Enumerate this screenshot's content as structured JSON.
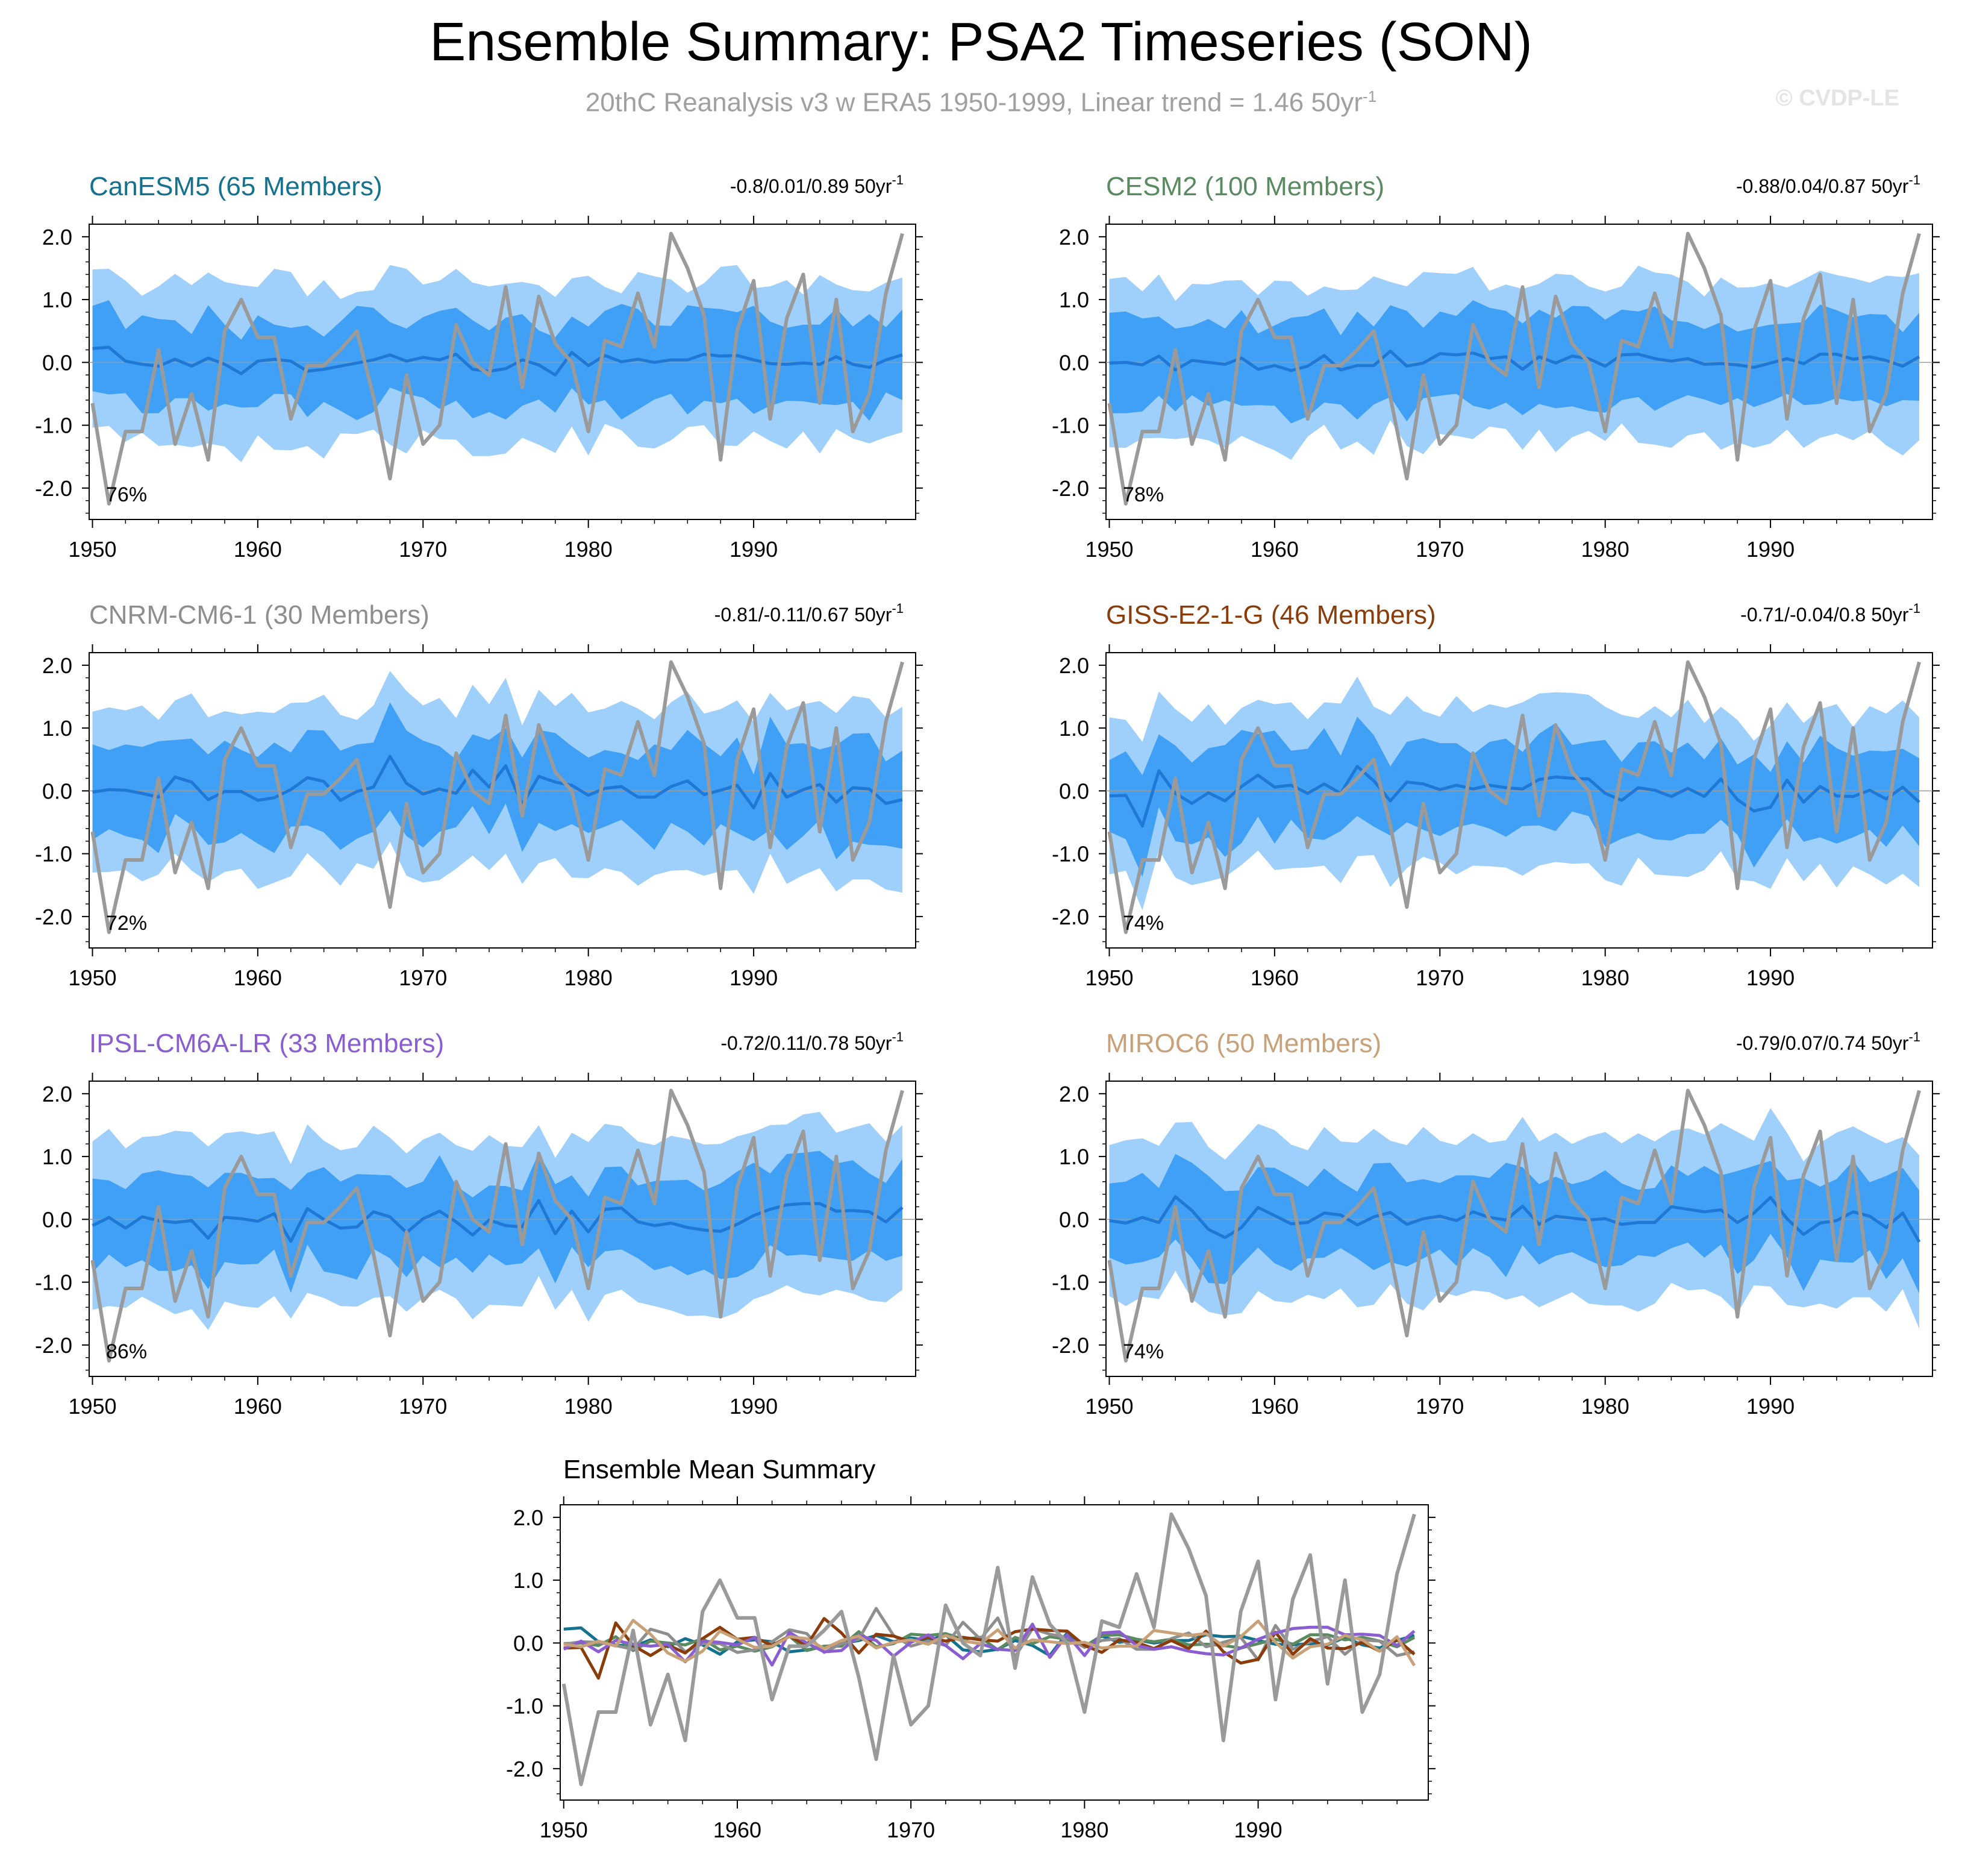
{
  "header": {
    "title": "Ensemble Summary: PSA2 Timeseries (SON)",
    "subtitle_text": "20thC Reanalysis v3 w ERA5 1950-1999, Linear trend = 1.46 50yr",
    "subtitle_exp": "-1",
    "watermark": "© CVDP-LE"
  },
  "colors": {
    "spread_outer": "#9ed0fb",
    "spread_inner": "#3fa0f5",
    "ens_mean": "#1f78d6",
    "obs": "#9a9a9a",
    "zero_line": "#9a9a9a"
  },
  "chart_data": {
    "type": "line",
    "x_years": [
      1950,
      1951,
      1952,
      1953,
      1954,
      1955,
      1956,
      1957,
      1958,
      1959,
      1960,
      1961,
      1962,
      1963,
      1964,
      1965,
      1966,
      1967,
      1968,
      1969,
      1970,
      1971,
      1972,
      1973,
      1974,
      1975,
      1976,
      1977,
      1978,
      1979,
      1980,
      1981,
      1982,
      1983,
      1984,
      1985,
      1986,
      1987,
      1988,
      1989,
      1990,
      1991,
      1992,
      1993,
      1994,
      1995,
      1996,
      1997,
      1998,
      1999
    ],
    "xlim": [
      1949.8,
      1999.8
    ],
    "ylim": [
      -2.5,
      2.2
    ],
    "y_ticks": [
      "2.0",
      "1.0",
      "0.0",
      "-1.0",
      "-2.0"
    ],
    "x_ticks": [
      "1950",
      "1960",
      "1970",
      "1980",
      "1990"
    ],
    "observed": {
      "name": "20thC Reanalysis v3 w ERA5",
      "values": [
        -0.65,
        -2.25,
        -1.1,
        -1.1,
        0.2,
        -1.3,
        -0.5,
        -1.55,
        0.5,
        1.0,
        0.4,
        0.4,
        -0.9,
        -0.05,
        -0.05,
        0.2,
        0.5,
        -0.55,
        -1.85,
        -0.2,
        -1.3,
        -1.0,
        0.6,
        0.0,
        -0.2,
        1.2,
        -0.4,
        1.05,
        0.3,
        0.0,
        -1.1,
        0.35,
        0.25,
        1.1,
        0.25,
        2.05,
        1.5,
        0.75,
        -1.55,
        0.5,
        1.3,
        -0.9,
        0.7,
        1.4,
        -0.65,
        1.0,
        -1.1,
        -0.5,
        1.1,
        2.05
      ]
    },
    "panels": [
      {
        "label": "CanESM5 (65 Members)",
        "color": "#15728f",
        "stats": "-0.8/0.01/0.89 50yr",
        "stats_exp": "-1",
        "percent": "76%",
        "ens_mean": [
          0.22,
          0.24,
          0.02,
          -0.03,
          -0.06,
          0.05,
          -0.06,
          0.07,
          -0.03,
          -0.18,
          0.02,
          0.05,
          0.02,
          -0.14,
          -0.11,
          -0.06,
          -0.01,
          0.04,
          0.12,
          0.02,
          0.08,
          0.04,
          0.13,
          -0.11,
          -0.14,
          -0.1,
          0.04,
          -0.04,
          -0.2,
          0.16,
          -0.05,
          0.11,
          0.01,
          0.05,
          0.0,
          0.04,
          0.04,
          0.13,
          0.1,
          0.11,
          0.04,
          -0.02,
          -0.03,
          -0.01,
          -0.03,
          0.09,
          -0.03,
          -0.08,
          0.04,
          0.12
        ],
        "inner_amp": [
          0.68,
          0.75,
          0.51,
          0.78,
          0.75,
          0.62,
          0.51,
          0.84,
          0.63,
          0.54,
          0.73,
          0.55,
          0.53,
          0.73,
          0.52,
          0.71,
          0.91,
          0.83,
          0.52,
          0.52,
          0.64,
          0.78,
          0.74,
          0.78,
          0.65,
          0.81,
          0.73,
          0.55,
          0.6,
          0.57,
          0.62,
          0.71,
          0.92,
          0.8,
          0.59,
          0.54,
          0.87,
          0.74,
          0.75,
          0.69,
          0.86,
          0.67,
          0.58,
          0.61,
          0.63,
          0.77,
          0.6,
          0.85,
          0.52,
          0.72
        ],
        "outer_amp": [
          1.26,
          1.25,
          1.28,
          1.09,
          1.27,
          1.36,
          1.29,
          1.36,
          1.31,
          1.41,
          1.18,
          1.44,
          1.42,
          1.19,
          1.42,
          1.07,
          1.13,
          1.11,
          1.43,
          1.47,
          1.16,
          1.26,
          1.36,
          1.38,
          1.35,
          1.35,
          1.24,
          1.27,
          1.24,
          1.18,
          1.43,
          1.09,
          1.09,
          1.39,
          1.37,
          1.28,
          1.07,
          1.13,
          1.42,
          1.44,
          1.14,
          1.23,
          1.34,
          1.09,
          1.42,
          1.15,
          1.18,
          1.21,
          1.23,
          1.23
        ]
      },
      {
        "label": "CESM2 (100 Members)",
        "color": "#5a8a60",
        "stats": "-0.88/0.04/0.87 50yr",
        "stats_exp": "-1",
        "percent": "78%",
        "ens_mean": [
          -0.01,
          0.0,
          -0.04,
          0.1,
          -0.12,
          0.03,
          0.0,
          -0.03,
          0.07,
          -0.11,
          -0.05,
          -0.13,
          -0.06,
          0.11,
          -0.12,
          -0.05,
          -0.05,
          0.18,
          -0.06,
          -0.01,
          0.14,
          0.12,
          0.15,
          0.06,
          0.09,
          -0.11,
          0.09,
          -0.01,
          0.1,
          0.06,
          -0.06,
          0.12,
          0.13,
          0.06,
          0.02,
          0.06,
          -0.03,
          -0.02,
          -0.04,
          -0.08,
          -0.01,
          0.06,
          -0.02,
          0.13,
          0.13,
          0.05,
          0.09,
          0.03,
          -0.06,
          0.09
        ],
        "inner_amp": [
          0.8,
          0.81,
          0.74,
          0.63,
          0.66,
          0.55,
          0.69,
          0.57,
          0.76,
          0.57,
          0.64,
          0.84,
          0.8,
          0.75,
          0.55,
          0.86,
          0.62,
          0.73,
          0.88,
          0.56,
          0.67,
          0.62,
          0.84,
          0.81,
          0.73,
          0.73,
          0.75,
          0.72,
          0.8,
          0.83,
          0.74,
          0.72,
          0.68,
          0.83,
          0.65,
          0.58,
          0.56,
          0.66,
          0.53,
          0.63,
          0.61,
          0.56,
          0.66,
          0.79,
          0.7,
          0.67,
          0.68,
          0.73,
          0.54,
          0.7
        ],
        "outer_amp": [
          1.34,
          1.36,
          1.17,
          1.3,
          1.1,
          1.22,
          1.24,
          1.33,
          1.24,
          1.18,
          1.35,
          1.42,
          1.12,
          1.1,
          1.27,
          1.21,
          1.42,
          1.1,
          1.27,
          1.45,
          1.28,
          1.29,
          1.37,
          1.08,
          1.15,
          1.28,
          1.16,
          1.42,
          1.29,
          1.15,
          1.19,
          1.09,
          1.41,
          1.37,
          1.38,
          1.22,
          1.08,
          1.37,
          1.23,
          1.28,
          1.28,
          1.13,
          1.34,
          1.33,
          1.26,
          1.29,
          1.18,
          1.35,
          1.42,
          1.33
        ]
      },
      {
        "label": "CNRM-CM6-1 (30 Members)",
        "color": "#8e8e8e",
        "stats": "-0.81/-0.11/0.67 50yr",
        "stats_exp": "-1",
        "percent": "72%",
        "ens_mean": [
          -0.02,
          0.02,
          0.01,
          -0.04,
          -0.1,
          0.22,
          0.14,
          -0.14,
          -0.01,
          -0.01,
          -0.15,
          -0.11,
          0.02,
          0.21,
          0.15,
          -0.15,
          -0.01,
          0.06,
          0.55,
          0.12,
          -0.05,
          0.03,
          -0.04,
          0.33,
          0.06,
          0.4,
          -0.22,
          0.23,
          0.14,
          0.09,
          -0.07,
          0.04,
          0.07,
          -0.1,
          -0.1,
          0.07,
          0.16,
          -0.06,
          0.01,
          0.09,
          -0.27,
          0.28,
          -0.1,
          0.02,
          0.1,
          -0.18,
          0.05,
          0.03,
          -0.2,
          -0.14
        ],
        "inner_amp": [
          0.76,
          0.63,
          0.73,
          0.74,
          0.89,
          0.59,
          0.69,
          0.72,
          0.81,
          0.66,
          0.69,
          0.88,
          0.59,
          0.76,
          0.81,
          0.79,
          0.75,
          0.71,
          0.86,
          0.84,
          0.85,
          0.68,
          0.54,
          0.57,
          0.75,
          0.6,
          0.75,
          0.74,
          0.78,
          0.62,
          0.6,
          0.61,
          0.53,
          0.59,
          0.84,
          0.58,
          0.81,
          0.81,
          0.54,
          0.76,
          0.53,
          0.9,
          0.84,
          0.74,
          0.56,
          0.91,
          0.86,
          0.89,
          0.67,
          0.78
        ],
        "outer_amp": [
          1.28,
          1.31,
          1.27,
          1.4,
          1.23,
          1.22,
          1.41,
          1.31,
          1.28,
          1.23,
          1.41,
          1.35,
          1.38,
          1.2,
          1.38,
          1.36,
          1.14,
          1.3,
          1.36,
          1.47,
          1.41,
          1.45,
          1.2,
          1.36,
          1.32,
          1.4,
          1.26,
          1.38,
          1.21,
          1.47,
          1.32,
          1.27,
          1.36,
          1.41,
          1.24,
          1.34,
          1.42,
          1.29,
          1.29,
          1.35,
          1.37,
          1.28,
          1.38,
          1.36,
          1.33,
          1.42,
          1.46,
          1.44,
          1.37,
          1.48
        ]
      },
      {
        "label": "GISS-E2-1-G (46 Members)",
        "color": "#8a3d0a",
        "stats": "-0.71/-0.04/0.8 50yr",
        "stats_exp": "-1",
        "percent": "74%",
        "ens_mean": [
          -0.08,
          -0.07,
          -0.56,
          0.32,
          -0.04,
          -0.2,
          -0.03,
          -0.16,
          0.07,
          0.25,
          0.06,
          0.09,
          -0.04,
          0.11,
          -0.04,
          0.39,
          0.16,
          -0.16,
          0.14,
          0.11,
          0.02,
          0.09,
          0.03,
          0.09,
          0.05,
          0.03,
          0.18,
          0.22,
          0.2,
          0.19,
          -0.04,
          -0.15,
          0.05,
          0.01,
          -0.09,
          0.04,
          -0.09,
          0.19,
          -0.14,
          -0.32,
          -0.26,
          0.17,
          -0.18,
          0.07,
          -0.08,
          -0.09,
          0.01,
          -0.13,
          0.06,
          -0.18
        ],
        "inner_amp": [
          0.57,
          0.7,
          0.81,
          0.58,
          0.76,
          0.65,
          0.71,
          0.89,
          0.9,
          0.66,
          0.9,
          0.55,
          0.71,
          0.89,
          0.6,
          0.79,
          0.73,
          0.55,
          0.64,
          0.73,
          0.74,
          0.67,
          0.55,
          0.69,
          0.78,
          0.59,
          0.73,
          0.86,
          0.53,
          0.59,
          0.85,
          0.61,
          0.72,
          0.78,
          0.7,
          0.73,
          0.59,
          0.65,
          0.56,
          0.9,
          0.56,
          0.62,
          0.63,
          0.81,
          0.76,
          0.65,
          0.63,
          0.76,
          0.61,
          0.7
        ],
        "outer_amp": [
          1.25,
          1.2,
          1.34,
          1.26,
          1.34,
          1.3,
          1.41,
          1.21,
          1.25,
          1.2,
          1.32,
          1.32,
          1.18,
          1.3,
          1.43,
          1.43,
          1.18,
          1.37,
          1.37,
          1.16,
          1.16,
          1.42,
          1.22,
          1.29,
          1.27,
          1.38,
          1.37,
          1.35,
          1.36,
          1.34,
          1.38,
          1.36,
          1.11,
          1.34,
          1.26,
          1.41,
          1.17,
          1.15,
          1.27,
          1.12,
          1.3,
          1.24,
          1.26,
          1.23,
          1.46,
          1.11,
          1.34,
          1.36,
          1.38,
          1.35
        ]
      },
      {
        "label": "IPSL-CM6A-LR (33 Members)",
        "color": "#8a5ed0",
        "stats": "-0.72/0.11/0.78 50yr",
        "stats_exp": "-1",
        "percent": "86%",
        "ens_mean": [
          -0.1,
          0.03,
          -0.14,
          0.04,
          -0.02,
          -0.05,
          -0.02,
          -0.3,
          0.03,
          0.01,
          -0.03,
          0.09,
          -0.35,
          0.17,
          0.0,
          -0.14,
          -0.12,
          0.12,
          0.04,
          -0.21,
          0.01,
          0.13,
          -0.04,
          -0.25,
          -0.01,
          -0.1,
          -0.12,
          0.3,
          -0.23,
          0.13,
          -0.2,
          0.16,
          0.18,
          -0.04,
          -0.1,
          -0.06,
          -0.13,
          -0.17,
          -0.19,
          -0.08,
          0.06,
          0.16,
          0.23,
          0.25,
          0.25,
          0.13,
          0.14,
          0.12,
          -0.04,
          0.19
        ],
        "inner_amp": [
          0.75,
          0.59,
          0.62,
          0.69,
          0.8,
          0.77,
          0.71,
          0.81,
          0.71,
          0.73,
          0.68,
          0.57,
          0.82,
          0.57,
          0.83,
          0.74,
          0.84,
          0.59,
          0.66,
          0.71,
          0.59,
          0.89,
          0.57,
          0.6,
          0.55,
          0.63,
          0.58,
          0.76,
          0.79,
          0.57,
          0.56,
          0.67,
          0.66,
          0.58,
          0.71,
          0.68,
          0.76,
          0.63,
          0.76,
          0.84,
          0.84,
          0.57,
          0.81,
          0.81,
          0.84,
          0.76,
          0.8,
          0.61,
          0.62,
          0.77
        ],
        "outer_amp": [
          1.34,
          1.41,
          1.27,
          1.27,
          1.35,
          1.46,
          1.41,
          1.46,
          1.34,
          1.39,
          1.38,
          1.31,
          1.23,
          1.34,
          1.25,
          1.24,
          1.27,
          1.37,
          1.26,
          1.26,
          1.26,
          1.25,
          1.22,
          1.34,
          1.35,
          1.27,
          1.27,
          1.2,
          1.21,
          1.25,
          1.43,
          1.36,
          1.3,
          1.28,
          1.28,
          1.39,
          1.41,
          1.36,
          1.39,
          1.4,
          1.33,
          1.34,
          1.28,
          1.42,
          1.46,
          1.25,
          1.32,
          1.41,
          1.28,
          1.31
        ]
      },
      {
        "label": "MIROC6 (50 Members)",
        "color": "#c9a178",
        "stats": "-0.79/0.07/0.74 50yr",
        "stats_exp": "-1",
        "percent": "74%",
        "ens_mean": [
          -0.02,
          -0.06,
          0.03,
          -0.05,
          0.36,
          0.14,
          -0.16,
          -0.29,
          -0.13,
          0.19,
          0.06,
          -0.07,
          -0.05,
          0.1,
          0.07,
          -0.09,
          0.04,
          0.11,
          -0.08,
          0.01,
          0.05,
          -0.02,
          0.12,
          0.03,
          -0.01,
          0.21,
          -0.08,
          0.05,
          0.02,
          -0.01,
          0.01,
          -0.08,
          -0.05,
          -0.05,
          0.2,
          0.16,
          0.12,
          0.15,
          -0.05,
          0.1,
          0.35,
          0.01,
          -0.24,
          -0.06,
          -0.02,
          0.12,
          0.05,
          -0.13,
          0.1,
          -0.36
        ],
        "inner_amp": [
          0.59,
          0.66,
          0.71,
          0.55,
          0.68,
          0.76,
          0.85,
          0.74,
          0.59,
          0.64,
          0.76,
          0.75,
          0.57,
          0.71,
          0.53,
          0.53,
          0.85,
          0.79,
          0.67,
          0.63,
          0.53,
          0.72,
          0.58,
          0.63,
          0.91,
          0.62,
          0.64,
          0.63,
          0.54,
          0.64,
          0.77,
          0.65,
          0.52,
          0.55,
          0.66,
          0.53,
          0.73,
          0.55,
          0.82,
          0.75,
          0.58,
          0.61,
          0.9,
          0.58,
          0.66,
          0.81,
          0.54,
          0.82,
          0.72,
          0.82
        ],
        "outer_amp": [
          1.2,
          1.32,
          1.26,
          1.22,
          1.18,
          1.41,
          1.31,
          1.24,
          1.36,
          1.33,
          1.36,
          1.26,
          1.15,
          1.37,
          1.17,
          1.31,
          1.4,
          1.14,
          1.26,
          1.46,
          1.2,
          1.2,
          1.25,
          1.19,
          1.27,
          1.42,
          1.32,
          1.33,
          1.18,
          1.33,
          1.38,
          1.29,
          1.42,
          1.29,
          1.21,
          1.29,
          1.23,
          1.38,
          1.44,
          1.15,
          1.42,
          1.37,
          1.16,
          1.28,
          1.4,
          1.36,
          1.29,
          1.34,
          1.21,
          1.38
        ]
      }
    ],
    "summary": {
      "title": "Ensemble Mean Summary",
      "series_order": [
        "CanESM5",
        "CESM2",
        "CNRM-CM6-1",
        "GISS-E2-1-G",
        "IPSL-CM6A-LR",
        "MIROC6"
      ]
    }
  }
}
